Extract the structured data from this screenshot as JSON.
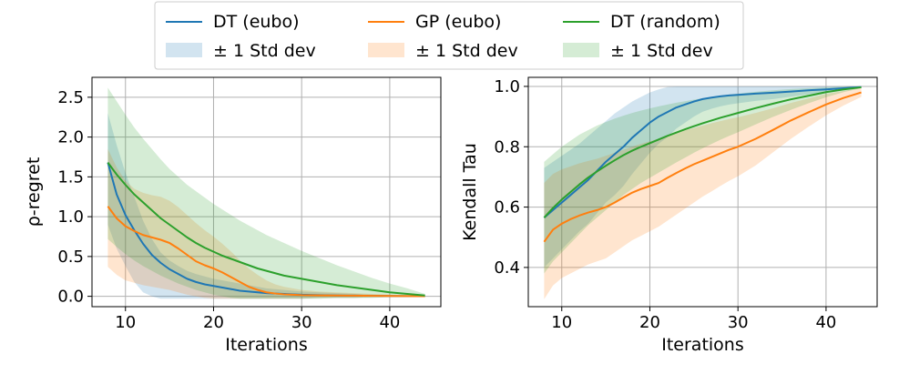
{
  "legend": {
    "placement": "top-center, above both panels, 3 columns",
    "entries": [
      {
        "label": "DT (eubo)",
        "kind": "line",
        "color": "#1f77b4"
      },
      {
        "label": "GP (eubo)",
        "kind": "line",
        "color": "#ff7f0e"
      },
      {
        "label": "DT (random)",
        "kind": "line",
        "color": "#2ca02c"
      },
      {
        "label": "± 1 Std dev",
        "kind": "band",
        "color": "#1f77b4"
      },
      {
        "label": "± 1 Std dev",
        "kind": "band",
        "color": "#ff7f0e"
      },
      {
        "label": "± 1 Std dev",
        "kind": "band",
        "color": "#2ca02c"
      }
    ]
  },
  "chart_data": [
    {
      "type": "line",
      "title": "",
      "xlabel": "Iterations",
      "ylabel": "ρ-regret",
      "xlim": [
        6.2,
        45.8
      ],
      "ylim": [
        -0.13,
        2.75
      ],
      "xticks": [
        10,
        20,
        30,
        40
      ],
      "yticks": [
        0.0,
        0.5,
        1.0,
        1.5,
        2.0,
        2.5
      ],
      "ytick_labels": [
        "0.0",
        "0.5",
        "1.0",
        "1.5",
        "2.0",
        "2.5"
      ],
      "grid": true,
      "x": [
        8,
        9,
        10,
        11,
        12,
        13,
        14,
        15,
        16,
        17,
        18,
        19,
        20,
        21,
        22,
        23,
        24,
        25,
        26,
        27,
        28,
        29,
        30,
        32,
        34,
        36,
        38,
        40,
        42,
        44
      ],
      "series": [
        {
          "name": "DT (eubo)",
          "color": "#1f77b4",
          "values": [
            1.68,
            1.28,
            1.02,
            0.83,
            0.66,
            0.52,
            0.42,
            0.34,
            0.28,
            0.22,
            0.18,
            0.15,
            0.13,
            0.11,
            0.09,
            0.07,
            0.06,
            0.05,
            0.04,
            0.035,
            0.03,
            0.025,
            0.02,
            0.015,
            0.01,
            0.008,
            0.006,
            0.004,
            0.003,
            0.002
          ],
          "upper": [
            2.3,
            1.9,
            1.55,
            1.25,
            0.95,
            0.72,
            0.55,
            0.45,
            0.38,
            0.32,
            0.28,
            0.25,
            0.22,
            0.2,
            0.18,
            0.16,
            0.14,
            0.12,
            0.1,
            0.09,
            0.08,
            0.07,
            0.06,
            0.05,
            0.04,
            0.03,
            0.02,
            0.015,
            0.01,
            0.005
          ],
          "lower": [
            0.9,
            0.6,
            0.38,
            0.18,
            0.05,
            0.0,
            -0.03,
            -0.03,
            -0.03,
            -0.03,
            -0.03,
            -0.03,
            -0.03,
            -0.03,
            -0.03,
            -0.03,
            -0.03,
            -0.03,
            -0.03,
            -0.03,
            -0.03,
            -0.03,
            -0.03,
            -0.02,
            -0.02,
            -0.02,
            -0.01,
            -0.01,
            -0.01,
            0.0
          ]
        },
        {
          "name": "GP (eubo)",
          "color": "#ff7f0e",
          "values": [
            1.13,
            0.98,
            0.88,
            0.82,
            0.77,
            0.74,
            0.71,
            0.67,
            0.6,
            0.52,
            0.44,
            0.39,
            0.35,
            0.3,
            0.24,
            0.18,
            0.12,
            0.08,
            0.05,
            0.035,
            0.025,
            0.02,
            0.015,
            0.012,
            0.01,
            0.008,
            0.006,
            0.005,
            0.003,
            0.002
          ],
          "upper": [
            1.85,
            1.62,
            1.45,
            1.35,
            1.3,
            1.27,
            1.25,
            1.2,
            1.12,
            1.02,
            0.92,
            0.83,
            0.75,
            0.66,
            0.56,
            0.45,
            0.35,
            0.27,
            0.2,
            0.15,
            0.12,
            0.1,
            0.08,
            0.06,
            0.05,
            0.04,
            0.03,
            0.02,
            0.015,
            0.01
          ],
          "lower": [
            0.37,
            0.27,
            0.2,
            0.17,
            0.14,
            0.12,
            0.1,
            0.08,
            0.05,
            0.02,
            0.0,
            -0.02,
            -0.03,
            -0.03,
            -0.03,
            -0.03,
            -0.03,
            -0.03,
            -0.03,
            -0.03,
            -0.03,
            -0.03,
            -0.03,
            -0.02,
            -0.02,
            -0.02,
            -0.01,
            -0.01,
            -0.01,
            0.0
          ]
        },
        {
          "name": "DT (random)",
          "color": "#2ca02c",
          "values": [
            1.68,
            1.53,
            1.4,
            1.28,
            1.18,
            1.08,
            0.98,
            0.9,
            0.82,
            0.74,
            0.67,
            0.61,
            0.56,
            0.51,
            0.47,
            0.43,
            0.39,
            0.35,
            0.32,
            0.29,
            0.26,
            0.24,
            0.22,
            0.18,
            0.14,
            0.11,
            0.08,
            0.05,
            0.03,
            0.01
          ],
          "upper": [
            2.62,
            2.45,
            2.28,
            2.12,
            1.98,
            1.85,
            1.72,
            1.6,
            1.5,
            1.4,
            1.32,
            1.24,
            1.16,
            1.09,
            1.02,
            0.95,
            0.89,
            0.83,
            0.77,
            0.72,
            0.67,
            0.62,
            0.57,
            0.48,
            0.39,
            0.31,
            0.23,
            0.16,
            0.1,
            0.03
          ],
          "lower": [
            0.72,
            0.62,
            0.53,
            0.45,
            0.38,
            0.32,
            0.26,
            0.21,
            0.16,
            0.12,
            0.08,
            0.05,
            0.02,
            0.0,
            -0.02,
            -0.03,
            -0.03,
            -0.03,
            -0.03,
            -0.03,
            -0.03,
            -0.03,
            -0.03,
            -0.03,
            -0.02,
            -0.02,
            -0.02,
            -0.01,
            -0.01,
            0.0
          ]
        }
      ]
    },
    {
      "type": "line",
      "title": "",
      "xlabel": "Iterations",
      "ylabel": "Kendall Tau",
      "xlim": [
        6.2,
        45.8
      ],
      "ylim": [
        0.27,
        1.03
      ],
      "xticks": [
        10,
        20,
        30,
        40
      ],
      "yticks": [
        0.4,
        0.6,
        0.8,
        1.0
      ],
      "ytick_labels": [
        "0.4",
        "0.6",
        "0.8",
        "1.0"
      ],
      "grid": true,
      "x": [
        8,
        9,
        10,
        11,
        12,
        13,
        14,
        15,
        16,
        17,
        18,
        19,
        20,
        21,
        22,
        23,
        24,
        25,
        26,
        27,
        28,
        29,
        30,
        32,
        34,
        36,
        38,
        40,
        42,
        44
      ],
      "series": [
        {
          "name": "DT (eubo)",
          "color": "#1f77b4",
          "values": [
            0.565,
            0.59,
            0.615,
            0.64,
            0.665,
            0.69,
            0.72,
            0.75,
            0.775,
            0.8,
            0.83,
            0.855,
            0.88,
            0.9,
            0.915,
            0.93,
            0.94,
            0.95,
            0.958,
            0.963,
            0.967,
            0.97,
            0.972,
            0.976,
            0.979,
            0.983,
            0.987,
            0.99,
            0.994,
            0.998
          ],
          "upper": [
            0.73,
            0.75,
            0.77,
            0.79,
            0.81,
            0.835,
            0.86,
            0.885,
            0.91,
            0.93,
            0.95,
            0.965,
            0.98,
            0.99,
            0.998,
            1.0,
            1.0,
            1.0,
            1.0,
            1.0,
            1.0,
            1.0,
            1.0,
            1.0,
            1.0,
            1.0,
            1.0,
            1.0,
            1.0,
            1.0
          ],
          "lower": [
            0.4,
            0.43,
            0.46,
            0.49,
            0.52,
            0.545,
            0.58,
            0.615,
            0.64,
            0.67,
            0.71,
            0.745,
            0.78,
            0.81,
            0.832,
            0.86,
            0.88,
            0.9,
            0.916,
            0.926,
            0.934,
            0.94,
            0.944,
            0.952,
            0.958,
            0.966,
            0.974,
            0.98,
            0.988,
            0.996
          ]
        },
        {
          "name": "GP (eubo)",
          "color": "#ff7f0e",
          "values": [
            0.485,
            0.525,
            0.545,
            0.56,
            0.572,
            0.582,
            0.59,
            0.6,
            0.615,
            0.632,
            0.648,
            0.66,
            0.67,
            0.68,
            0.697,
            0.713,
            0.728,
            0.742,
            0.754,
            0.766,
            0.778,
            0.79,
            0.8,
            0.826,
            0.856,
            0.887,
            0.914,
            0.94,
            0.962,
            0.98
          ],
          "upper": [
            0.68,
            0.71,
            0.725,
            0.735,
            0.745,
            0.753,
            0.76,
            0.77,
            0.78,
            0.79,
            0.8,
            0.81,
            0.818,
            0.826,
            0.835,
            0.845,
            0.855,
            0.862,
            0.87,
            0.878,
            0.885,
            0.892,
            0.898,
            0.912,
            0.928,
            0.945,
            0.96,
            0.975,
            0.985,
            0.995
          ],
          "lower": [
            0.295,
            0.34,
            0.365,
            0.38,
            0.395,
            0.41,
            0.42,
            0.43,
            0.45,
            0.47,
            0.49,
            0.505,
            0.52,
            0.535,
            0.555,
            0.575,
            0.595,
            0.615,
            0.635,
            0.652,
            0.67,
            0.687,
            0.702,
            0.738,
            0.782,
            0.826,
            0.866,
            0.904,
            0.937,
            0.965
          ]
        },
        {
          "name": "DT (random)",
          "color": "#2ca02c",
          "values": [
            0.565,
            0.597,
            0.625,
            0.65,
            0.675,
            0.698,
            0.718,
            0.737,
            0.755,
            0.772,
            0.787,
            0.8,
            0.812,
            0.824,
            0.836,
            0.847,
            0.858,
            0.868,
            0.878,
            0.887,
            0.896,
            0.904,
            0.912,
            0.928,
            0.943,
            0.957,
            0.969,
            0.981,
            0.99,
            0.997
          ],
          "upper": [
            0.75,
            0.775,
            0.8,
            0.82,
            0.84,
            0.855,
            0.87,
            0.882,
            0.893,
            0.903,
            0.912,
            0.92,
            0.927,
            0.934,
            0.94,
            0.946,
            0.951,
            0.956,
            0.961,
            0.965,
            0.969,
            0.973,
            0.976,
            0.982,
            0.987,
            0.991,
            0.994,
            0.997,
            0.999,
            1.0
          ],
          "lower": [
            0.38,
            0.42,
            0.45,
            0.48,
            0.51,
            0.54,
            0.565,
            0.59,
            0.615,
            0.64,
            0.66,
            0.68,
            0.697,
            0.714,
            0.731,
            0.748,
            0.764,
            0.78,
            0.795,
            0.809,
            0.823,
            0.836,
            0.848,
            0.874,
            0.899,
            0.922,
            0.944,
            0.964,
            0.981,
            0.994
          ]
        }
      ]
    }
  ]
}
